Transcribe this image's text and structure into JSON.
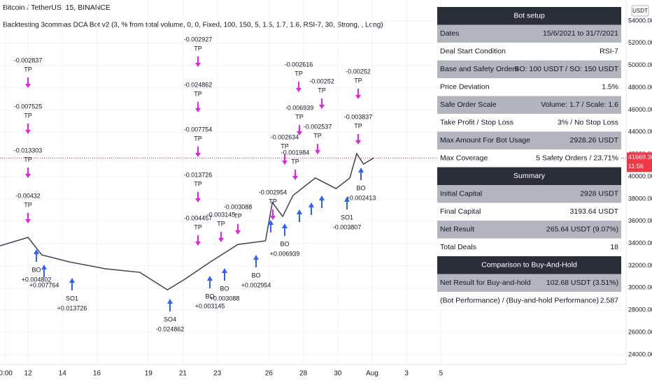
{
  "header": {
    "symbol": "Bitcoin / TetherUS, 15, BINANCE",
    "strategy": "Backtesting 3commas DCA Bot v2 (3, % from total volume, 0, 0, Fixed, 100, 150, 5, 1.5, 1.7, 1.6, RSI-7, 30, Strong, , Long)",
    "currency": "USDT"
  },
  "chart_data": {
    "type": "line",
    "color": "#3d4250",
    "x": [
      10.37,
      12,
      12.8,
      14.4,
      16.5,
      18.5,
      20.1,
      21.1,
      22.6,
      24.2,
      25.8,
      26.2,
      26.8,
      27.4,
      28.7,
      29.9,
      30.7,
      31.1,
      31.5,
      32.1
    ],
    "values": [
      33790,
      34540,
      32970,
      32340,
      31720,
      31400,
      29830,
      30770,
      32340,
      33910,
      34230,
      37680,
      36420,
      38310,
      39880,
      38930,
      39880,
      42070,
      41130,
      41690
    ],
    "xlim": [
      10.37,
      46.76
    ],
    "ylim": [
      23120,
      55880
    ],
    "xticks": [
      {
        "value": 10.7,
        "label": "0:00"
      },
      12,
      14,
      16,
      19,
      21,
      23,
      26,
      28,
      30,
      {
        "value": 32,
        "label": "Aug"
      },
      {
        "value": 34,
        "label": "3"
      },
      {
        "value": 36,
        "label": "5"
      }
    ],
    "yticks": [
      {
        "value": 54000,
        "label": "54000.00"
      },
      {
        "value": 52000,
        "label": "52000.00"
      },
      {
        "value": 50000,
        "label": "50000.00"
      },
      {
        "value": 48000,
        "label": "48000.00"
      },
      {
        "value": 46000,
        "label": "46000.00"
      },
      {
        "value": 44000,
        "label": "44000.00"
      },
      {
        "value": 42000,
        "label": "42000.00"
      },
      {
        "value": 40000,
        "label": "40000.00"
      },
      {
        "value": 38000,
        "label": "38000.00"
      },
      {
        "value": 36000,
        "label": "36000.00"
      },
      {
        "value": 34000,
        "label": "34000.00"
      },
      {
        "value": 32000,
        "label": "32000.00"
      },
      {
        "value": 30000,
        "label": "30000.00"
      },
      {
        "value": 28000,
        "label": "28000.00"
      },
      {
        "value": 26000,
        "label": "26000.00"
      },
      {
        "value": 24000,
        "label": "24000.00"
      }
    ],
    "last_price": 41669.36,
    "countdown": "11:56"
  },
  "annotations": {
    "exits": [
      {
        "value": "-0.002837",
        "label": "TP"
      },
      {
        "value": "-0.007525",
        "label": "TP"
      },
      {
        "value": "-0.013303",
        "label": "TP"
      },
      {
        "value": "-0.00432",
        "label": "TP"
      },
      {
        "value": "-0.002927",
        "label": "TP"
      },
      {
        "value": "-0.024862",
        "label": "TP"
      },
      {
        "value": "-0.007754",
        "label": "TP"
      },
      {
        "value": "-0.013726",
        "label": "TP"
      },
      {
        "value": "-0.004457",
        "label": "TP"
      },
      {
        "value": "-0.003145",
        "label": "TP"
      },
      {
        "value": "-0.003088",
        "label": "TP"
      },
      {
        "value": "-0.002954",
        "label": "TP"
      },
      {
        "value": "-0.002634",
        "label": "TP"
      },
      {
        "value": "-0.001984",
        "label": "TP"
      },
      {
        "value": "-0.006939",
        "label": "TP"
      },
      {
        "value": "-0.002616",
        "label": "TP"
      },
      {
        "value": "-0.00252",
        "label": "TP"
      },
      {
        "value": "-0.002537",
        "label": "TP"
      },
      {
        "value": "-0.00252",
        "label": "TP"
      },
      {
        "value": "-0.003837",
        "label": "TP"
      }
    ],
    "entries": [
      {
        "label": "BO",
        "value": "+0.004802"
      },
      {
        "value": "+0.007764"
      },
      {
        "label": "SO1",
        "value": "+0.013726"
      },
      {
        "label": "SO4",
        "value": "-0.024862"
      },
      {
        "label": "BO",
        "value": "+0.003145"
      },
      {
        "label": "BO",
        "value": "+0.003088"
      },
      {
        "label": "BO",
        "value": "+0.002954"
      },
      {
        "label": "BO",
        "value": "+0.006939"
      },
      {
        "label": "SO1",
        "value": "-0.003807"
      },
      {
        "label": "BO",
        "value": "+0.002413"
      }
    ]
  },
  "table": {
    "sections": [
      {
        "title": "Bot setup",
        "rows": [
          [
            "Dates",
            "15/6/2021 to 31/7/2021"
          ],
          [
            "Deal Start Condition",
            "RSI-7"
          ],
          [
            "Base and Safety Orders",
            "BO: 100 USDT / SO: 150 USDT"
          ],
          [
            "Price Deviation",
            "1.5%"
          ],
          [
            "Safe Order Scale",
            "Volume: 1.7 / Scale: 1.6"
          ],
          [
            "Take Profit / Stop Loss",
            "3% / No Stop Loss"
          ],
          [
            "Max Amount For Bot Usage",
            "2928.26 USDT"
          ],
          [
            "Max Coverage",
            "5 Safety Orders / 23.71%"
          ]
        ]
      },
      {
        "title": "Summary",
        "rows": [
          [
            "Initial Capital",
            "2928 USDT"
          ],
          [
            "Final Capital",
            "3193.64 USDT"
          ],
          [
            "Net Result",
            "265.64 USDT (9.07%)"
          ],
          [
            "Total Deals",
            "18"
          ]
        ]
      },
      {
        "title": "Comparison to Buy-And-Hold",
        "rows": [
          [
            "Net Result for Buy-and-hold",
            "102.68 USDT (3.51%)"
          ],
          [
            "(Bot Performance) / (Buy-and-hold Performance)",
            "2.587"
          ]
        ]
      }
    ]
  }
}
